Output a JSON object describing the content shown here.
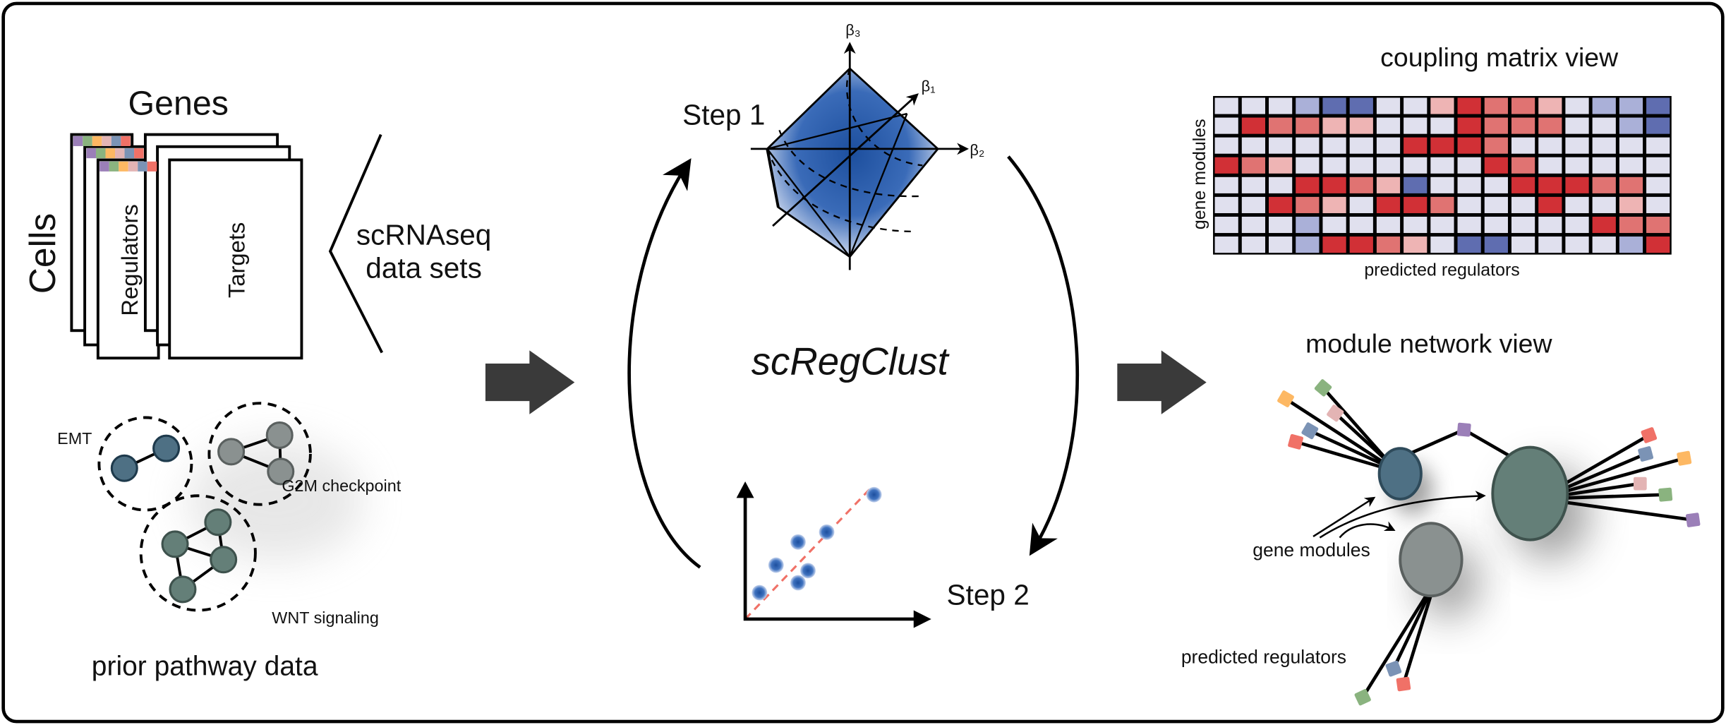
{
  "input": {
    "genes_label": "Genes",
    "cells_label": "Cells",
    "regulators_label": "Regulators",
    "targets_label": "Targets",
    "datasets_line1": "scRNAseq",
    "datasets_line2": "data sets",
    "header_colors": [
      "#9b7fb8",
      "#8ab37f",
      "#fdb863",
      "#e3b4b4",
      "#7b93b5",
      "#f07167"
    ]
  },
  "prior": {
    "title": "prior pathway data",
    "pathways": [
      "EMT",
      "G2M checkpoint",
      "WNT signaling"
    ]
  },
  "method": {
    "name": "scRegClust",
    "step1": "Step 1",
    "step2": "Step 2",
    "beta1": "β₁",
    "beta2": "β₂",
    "beta3": "β₃"
  },
  "coupling_matrix": {
    "title": "coupling matrix view",
    "ylabel": "gene modules",
    "xlabel": "predicted regulators",
    "palette": {
      "-2": "#5f6db0",
      "-1": "#aab0d8",
      "0": "#e0e0ee",
      "1": "#eeb4b4",
      "2": "#e07372",
      "3": "#d13036"
    },
    "values": [
      [
        0,
        0,
        0,
        -1,
        -2,
        -2,
        0,
        0,
        1,
        3,
        2,
        2,
        1,
        0,
        -1,
        -1,
        -2
      ],
      [
        0,
        3,
        2,
        2,
        1,
        1,
        0,
        0,
        0,
        3,
        2,
        2,
        2,
        0,
        0,
        -1,
        -2
      ],
      [
        0,
        0,
        0,
        0,
        0,
        0,
        0,
        3,
        3,
        3,
        2,
        0,
        0,
        0,
        0,
        0,
        0
      ],
      [
        3,
        2,
        1,
        0,
        0,
        0,
        0,
        0,
        0,
        0,
        3,
        2,
        0,
        0,
        0,
        0,
        0
      ],
      [
        0,
        0,
        0,
        3,
        3,
        2,
        1,
        -2,
        0,
        0,
        0,
        3,
        3,
        3,
        2,
        2,
        0
      ],
      [
        0,
        0,
        3,
        2,
        1,
        0,
        3,
        3,
        2,
        0,
        0,
        0,
        3,
        0,
        0,
        1,
        0
      ],
      [
        0,
        0,
        0,
        -1,
        0,
        0,
        0,
        0,
        0,
        0,
        0,
        0,
        0,
        0,
        3,
        2,
        2
      ],
      [
        0,
        0,
        0,
        -1,
        3,
        3,
        2,
        1,
        0,
        -2,
        -2,
        0,
        0,
        0,
        0,
        -1,
        3
      ]
    ]
  },
  "network": {
    "title": "module network view",
    "gene_modules_label": "gene modules",
    "regulators_label": "predicted regulators"
  }
}
